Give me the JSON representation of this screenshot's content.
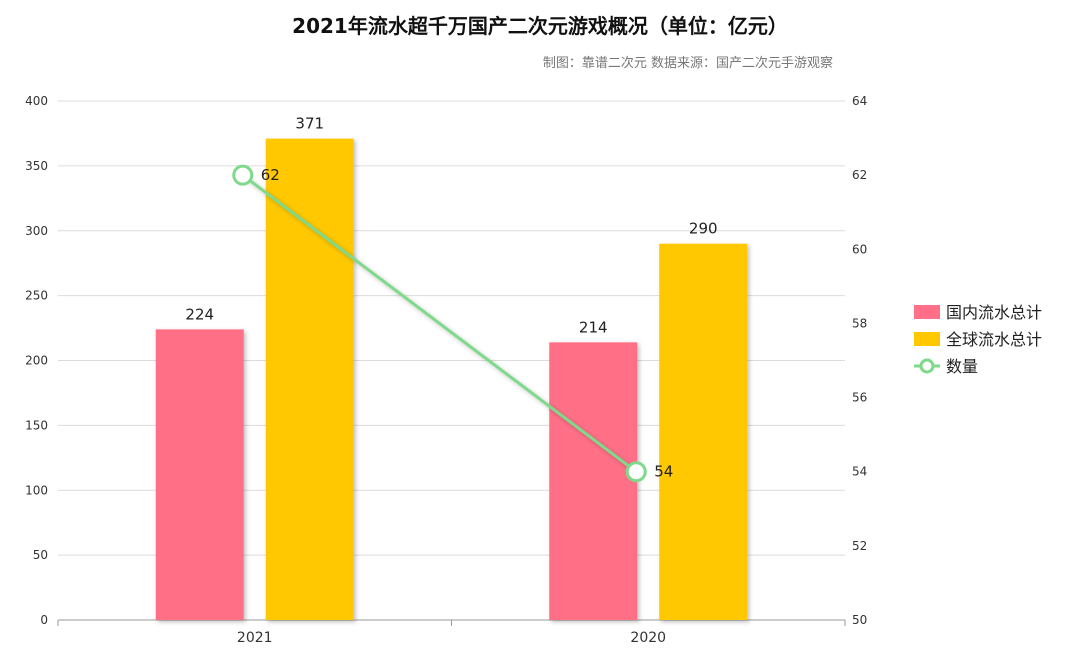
{
  "chart_data": {
    "type": "bar",
    "title": "2021年流水超千万国产二次元游戏概况（单位：亿元）",
    "subtitle": "制图：靠谱二次元 数据来源：国产二次元手游观察",
    "categories": [
      "2021",
      "2020"
    ],
    "series": [
      {
        "name": "国内流水总计",
        "type": "bar",
        "axis": "left",
        "color": "#ff6f87",
        "values": [
          224,
          214
        ]
      },
      {
        "name": "全球流水总计",
        "type": "bar",
        "axis": "left",
        "color": "#ffc800",
        "values": [
          371,
          290
        ]
      },
      {
        "name": "数量",
        "type": "line",
        "axis": "right",
        "color": "#7ed98a",
        "values": [
          62,
          54
        ]
      }
    ],
    "left_axis": {
      "ylim": [
        0,
        400
      ],
      "ticks": [
        "0",
        "50",
        "100",
        "150",
        "200",
        "250",
        "300",
        "350",
        "400"
      ]
    },
    "right_axis": {
      "ylim": [
        50,
        64
      ],
      "ticks": [
        "50",
        "52",
        "54",
        "56",
        "58",
        "60",
        "62",
        "64"
      ]
    },
    "grid": true,
    "legend_position": "right"
  }
}
